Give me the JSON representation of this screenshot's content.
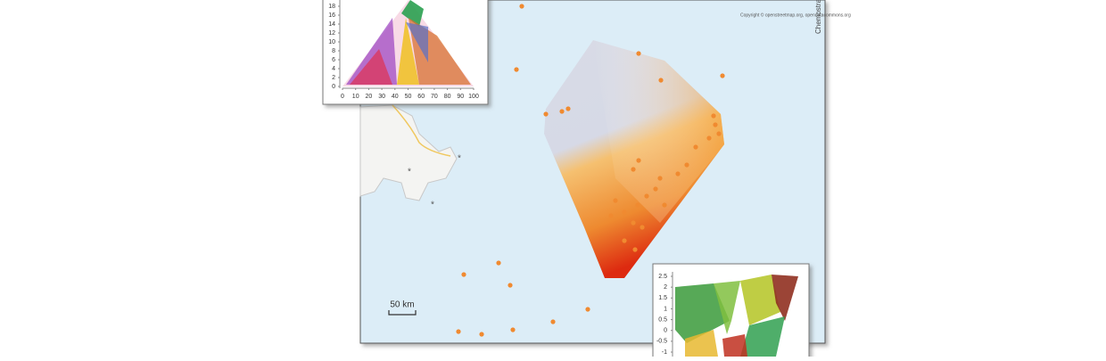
{
  "map": {
    "attribution": "Copyright © openstreetmap.org, opendatacommons.org",
    "side_label": "Chemostrat",
    "scale_bar": "50 km"
  },
  "inset_ternary": {
    "yticks": [
      0,
      2,
      4,
      6,
      8,
      10,
      12,
      14,
      16,
      18
    ],
    "xticks": [
      0,
      10,
      20,
      30,
      40,
      50,
      60,
      70,
      80,
      90,
      100
    ]
  },
  "inset_scatter": {
    "yticks": [
      2.5,
      2,
      1.5,
      1,
      0.5,
      0,
      -0.5,
      -1
    ]
  }
}
